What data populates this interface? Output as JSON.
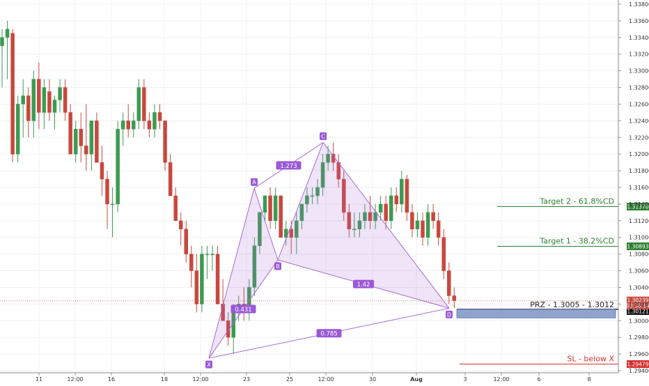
{
  "chart_data": {
    "type": "candlestick",
    "x_ticks": [
      "11",
      "12:00",
      "16",
      "18",
      "12:00",
      "23",
      "25",
      "12:00",
      "30",
      "Aug",
      "3",
      "12:00",
      "6",
      "8"
    ],
    "y_ticks": [
      "1.33800",
      "1.33600",
      "1.33400",
      "1.33200",
      "1.33000",
      "1.32800",
      "1.32600",
      "1.32400",
      "1.32200",
      "1.32000",
      "1.31800",
      "1.31600",
      "1.31400",
      "1.31200",
      "1.31000",
      "1.30800",
      "1.30600",
      "1.30400",
      "1.30200",
      "1.30000",
      "1.29800",
      "1.29600",
      "1.29400"
    ],
    "ylim": [
      1.2935,
      1.3385
    ],
    "grid": true,
    "colors": {
      "up": "#3d9a52",
      "down": "#c8483e",
      "pattern": "#a56bd6",
      "target": "#2e7d32",
      "stop": "#d32f2f",
      "prz": "#8fa3cf"
    },
    "pattern": {
      "points": [
        {
          "label": "X",
          "price": 1.2955
        },
        {
          "label": "A",
          "price": 1.3159
        },
        {
          "label": "B",
          "price": 1.3073
        },
        {
          "label": "C",
          "price": 1.3214
        },
        {
          "label": "D",
          "price": 1.3015
        }
      ],
      "ratios": [
        "0.431",
        "1.273",
        "1.42",
        "0.785"
      ]
    },
    "levels": [
      {
        "name": "Target 2 - 61.8%CD",
        "price": 1.3137,
        "badge": "1.31370",
        "color": "#2e7d32"
      },
      {
        "name": "Target 1 - 38.2%CD",
        "price": 1.30893,
        "badge": "1.30893",
        "color": "#2e7d32"
      },
      {
        "name": "SL - below X",
        "price": 1.29479,
        "badge": "1.29479",
        "color": "#d32f2f"
      }
    ],
    "prz": {
      "label": "PRZ - 1.3005 - 1.3012",
      "low": 1.3005,
      "high": 1.3012,
      "badge": "1.30121"
    },
    "current": {
      "price": 1.30239,
      "badge": "1.30239",
      "countdown": "03:38:14"
    },
    "candles": [
      [
        1.333,
        1.335,
        1.328,
        1.334
      ],
      [
        1.334,
        1.336,
        1.329,
        1.335
      ],
      [
        1.3345,
        1.335,
        1.319,
        1.32
      ],
      [
        1.32,
        1.327,
        1.319,
        1.326
      ],
      [
        1.326,
        1.329,
        1.322,
        1.327
      ],
      [
        1.327,
        1.328,
        1.322,
        1.324
      ],
      [
        1.324,
        1.33,
        1.322,
        1.329
      ],
      [
        1.329,
        1.331,
        1.323,
        1.325
      ],
      [
        1.325,
        1.329,
        1.323,
        1.328
      ],
      [
        1.3275,
        1.329,
        1.324,
        1.325
      ],
      [
        1.325,
        1.327,
        1.323,
        1.3265
      ],
      [
        1.3265,
        1.329,
        1.325,
        1.328
      ],
      [
        1.328,
        1.329,
        1.324,
        1.325
      ],
      [
        1.325,
        1.326,
        1.32,
        1.32
      ],
      [
        1.32,
        1.324,
        1.319,
        1.323
      ],
      [
        1.323,
        1.325,
        1.319,
        1.321
      ],
      [
        1.321,
        1.326,
        1.318,
        1.32
      ],
      [
        1.32,
        1.324,
        1.318,
        1.324
      ],
      [
        1.324,
        1.325,
        1.319,
        1.319
      ],
      [
        1.319,
        1.321,
        1.315,
        1.317
      ],
      [
        1.317,
        1.318,
        1.311,
        1.314
      ],
      [
        1.314,
        1.316,
        1.31,
        1.314
      ],
      [
        1.314,
        1.324,
        1.313,
        1.323
      ],
      [
        1.323,
        1.325,
        1.321,
        1.324
      ],
      [
        1.324,
        1.326,
        1.322,
        1.323
      ],
      [
        1.323,
        1.325,
        1.322,
        1.324
      ],
      [
        1.324,
        1.329,
        1.323,
        1.328
      ],
      [
        1.328,
        1.329,
        1.323,
        1.324
      ],
      [
        1.324,
        1.325,
        1.322,
        1.323
      ],
      [
        1.323,
        1.326,
        1.322,
        1.325
      ],
      [
        1.325,
        1.326,
        1.323,
        1.324
      ],
      [
        1.324,
        1.324,
        1.318,
        1.319
      ],
      [
        1.319,
        1.32,
        1.315,
        1.315
      ],
      [
        1.315,
        1.316,
        1.312,
        1.312
      ],
      [
        1.312,
        1.313,
        1.309,
        1.311
      ],
      [
        1.311,
        1.312,
        1.307,
        1.308
      ],
      [
        1.308,
        1.309,
        1.304,
        1.306
      ],
      [
        1.306,
        1.308,
        1.301,
        1.302
      ],
      [
        1.302,
        1.309,
        1.301,
        1.308
      ],
      [
        1.308,
        1.309,
        1.305,
        1.308
      ],
      [
        1.308,
        1.309,
        1.306,
        1.308
      ],
      [
        1.308,
        1.309,
        1.302,
        1.302
      ],
      [
        1.302,
        1.305,
        1.3,
        1.3
      ],
      [
        1.3,
        1.301,
        1.297,
        1.298
      ],
      [
        1.298,
        1.302,
        1.296,
        1.301
      ],
      [
        1.301,
        1.303,
        1.3,
        1.302
      ],
      [
        1.302,
        1.304,
        1.3,
        1.301
      ],
      [
        1.301,
        1.305,
        1.3,
        1.304
      ],
      [
        1.304,
        1.31,
        1.303,
        1.309
      ],
      [
        1.309,
        1.313,
        1.308,
        1.313
      ],
      [
        1.313,
        1.315,
        1.312,
        1.315
      ],
      [
        1.315,
        1.316,
        1.311,
        1.312
      ],
      [
        1.312,
        1.316,
        1.311,
        1.315
      ],
      [
        1.315,
        1.315,
        1.31,
        1.31
      ],
      [
        1.31,
        1.312,
        1.309,
        1.311
      ],
      [
        1.311,
        1.312,
        1.308,
        1.31
      ],
      [
        1.31,
        1.313,
        1.308,
        1.312
      ],
      [
        1.312,
        1.314,
        1.311,
        1.314
      ],
      [
        1.314,
        1.316,
        1.313,
        1.315
      ],
      [
        1.315,
        1.316,
        1.314,
        1.315
      ],
      [
        1.315,
        1.317,
        1.314,
        1.316
      ],
      [
        1.316,
        1.32,
        1.315,
        1.319
      ],
      [
        1.319,
        1.321,
        1.318,
        1.32
      ],
      [
        1.32,
        1.3214,
        1.318,
        1.319
      ],
      [
        1.319,
        1.32,
        1.316,
        1.317
      ],
      [
        1.317,
        1.318,
        1.312,
        1.313
      ],
      [
        1.313,
        1.314,
        1.31,
        1.311
      ],
      [
        1.311,
        1.313,
        1.31,
        1.311
      ],
      [
        1.311,
        1.313,
        1.31,
        1.312
      ],
      [
        1.312,
        1.314,
        1.311,
        1.313
      ],
      [
        1.313,
        1.315,
        1.311,
        1.312
      ],
      [
        1.312,
        1.314,
        1.311,
        1.313
      ],
      [
        1.313,
        1.315,
        1.312,
        1.314
      ],
      [
        1.314,
        1.315,
        1.311,
        1.312
      ],
      [
        1.312,
        1.316,
        1.311,
        1.315
      ],
      [
        1.315,
        1.316,
        1.313,
        1.314
      ],
      [
        1.314,
        1.318,
        1.313,
        1.317
      ],
      [
        1.317,
        1.3175,
        1.312,
        1.313
      ],
      [
        1.313,
        1.314,
        1.31,
        1.311
      ],
      [
        1.311,
        1.313,
        1.31,
        1.312
      ],
      [
        1.312,
        1.313,
        1.309,
        1.31
      ],
      [
        1.31,
        1.314,
        1.309,
        1.313
      ],
      [
        1.313,
        1.314,
        1.311,
        1.312
      ],
      [
        1.312,
        1.313,
        1.309,
        1.31
      ],
      [
        1.31,
        1.311,
        1.305,
        1.306
      ],
      [
        1.306,
        1.307,
        1.302,
        1.303
      ],
      [
        1.303,
        1.304,
        1.3015,
        1.3024
      ]
    ]
  }
}
